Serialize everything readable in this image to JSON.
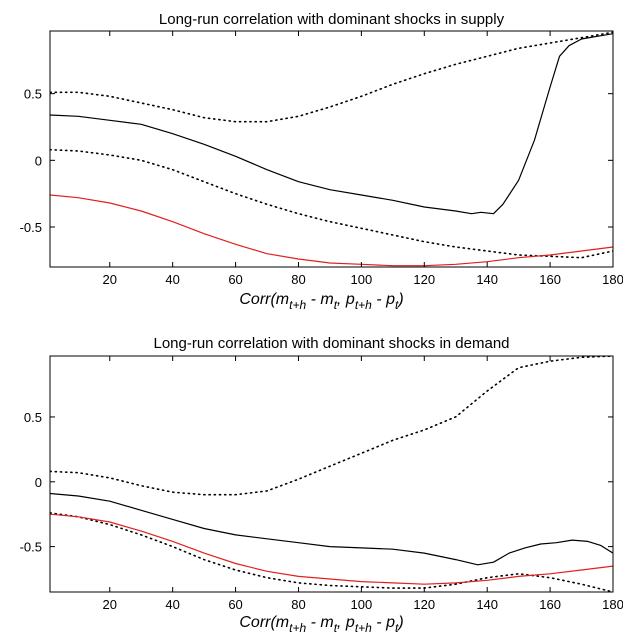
{
  "chart_data": [
    {
      "type": "line",
      "title": "Long-run correlation with dominant shocks in supply",
      "xlabel": {
        "base": "Corr(m",
        "sub1": "t+h",
        "mid1": " - m",
        "sub2": "t",
        "mid2": ", p",
        "sub3": "t+h",
        "mid3": " - p",
        "sub4": "t",
        "end": ")"
      },
      "ylabel": "",
      "xlim": [
        1,
        180
      ],
      "ylim": [
        -0.8,
        0.97
      ],
      "xticks": [
        20,
        40,
        60,
        80,
        100,
        120,
        140,
        160,
        180
      ],
      "yticks": [
        -0.5,
        0,
        0.5
      ],
      "xtick_labels": [
        "20",
        "40",
        "60",
        "80",
        "100",
        "120",
        "140",
        "160",
        "180"
      ],
      "ytick_labels": [
        "-0.5",
        "0",
        "0.5"
      ],
      "grid": false,
      "series": [
        {
          "style": "solid",
          "color": "#000000",
          "x": [
            1,
            10,
            20,
            30,
            40,
            50,
            60,
            70,
            80,
            90,
            100,
            110,
            120,
            130,
            135,
            138,
            142,
            145,
            150,
            155,
            160,
            163,
            166,
            170,
            175,
            180
          ],
          "y": [
            0.34,
            0.33,
            0.3,
            0.27,
            0.2,
            0.12,
            0.03,
            -0.07,
            -0.16,
            -0.22,
            -0.26,
            -0.3,
            -0.35,
            -0.38,
            -0.4,
            -0.39,
            -0.4,
            -0.33,
            -0.15,
            0.15,
            0.55,
            0.78,
            0.86,
            0.91,
            0.93,
            0.95
          ]
        },
        {
          "style": "dotted",
          "color": "#000000",
          "x": [
            1,
            10,
            20,
            30,
            40,
            50,
            60,
            70,
            80,
            90,
            100,
            110,
            120,
            130,
            140,
            150,
            160,
            170,
            180
          ],
          "y": [
            0.51,
            0.51,
            0.48,
            0.43,
            0.38,
            0.32,
            0.29,
            0.29,
            0.33,
            0.4,
            0.48,
            0.57,
            0.65,
            0.72,
            0.78,
            0.84,
            0.88,
            0.92,
            0.96
          ]
        },
        {
          "style": "dotted",
          "color": "#000000",
          "x": [
            1,
            10,
            20,
            30,
            40,
            50,
            60,
            70,
            80,
            90,
            100,
            110,
            120,
            130,
            140,
            150,
            160,
            170,
            180
          ],
          "y": [
            0.08,
            0.07,
            0.04,
            0.0,
            -0.07,
            -0.16,
            -0.25,
            -0.33,
            -0.4,
            -0.46,
            -0.51,
            -0.56,
            -0.61,
            -0.65,
            -0.68,
            -0.71,
            -0.72,
            -0.73,
            -0.68
          ]
        },
        {
          "style": "solid",
          "color": "#e02020",
          "x": [
            1,
            10,
            20,
            30,
            40,
            50,
            60,
            70,
            80,
            90,
            100,
            110,
            120,
            130,
            140,
            150,
            160,
            170,
            180
          ],
          "y": [
            -0.26,
            -0.28,
            -0.32,
            -0.38,
            -0.46,
            -0.55,
            -0.63,
            -0.7,
            -0.74,
            -0.77,
            -0.78,
            -0.79,
            -0.79,
            -0.78,
            -0.76,
            -0.73,
            -0.71,
            -0.68,
            -0.65
          ]
        }
      ]
    },
    {
      "type": "line",
      "title": "Long-run correlation with dominant shocks in demand",
      "xlabel": {
        "base": "Corr(m",
        "sub1": "t+h",
        "mid1": " - m",
        "sub2": "t",
        "mid2": ", p",
        "sub3": "t+h",
        "mid3": " - p",
        "sub4": "t",
        "end": ")"
      },
      "ylabel": "",
      "xlim": [
        1,
        180
      ],
      "ylim": [
        -0.85,
        0.97
      ],
      "xticks": [
        20,
        40,
        60,
        80,
        100,
        120,
        140,
        160,
        180
      ],
      "yticks": [
        -0.5,
        0,
        0.5
      ],
      "xtick_labels": [
        "20",
        "40",
        "60",
        "80",
        "100",
        "120",
        "140",
        "160",
        "180"
      ],
      "ytick_labels": [
        "-0.5",
        "0",
        "0.5"
      ],
      "grid": false,
      "series": [
        {
          "style": "solid",
          "color": "#000000",
          "x": [
            1,
            10,
            20,
            30,
            40,
            50,
            60,
            70,
            80,
            90,
            100,
            110,
            120,
            130,
            137,
            142,
            147,
            152,
            157,
            162,
            167,
            172,
            176,
            180
          ],
          "y": [
            -0.09,
            -0.11,
            -0.15,
            -0.22,
            -0.29,
            -0.36,
            -0.41,
            -0.44,
            -0.47,
            -0.5,
            -0.51,
            -0.52,
            -0.55,
            -0.6,
            -0.64,
            -0.62,
            -0.55,
            -0.51,
            -0.48,
            -0.47,
            -0.45,
            -0.46,
            -0.49,
            -0.55
          ]
        },
        {
          "style": "dotted",
          "color": "#000000",
          "x": [
            1,
            10,
            20,
            30,
            40,
            50,
            60,
            70,
            80,
            90,
            100,
            110,
            120,
            130,
            140,
            150,
            160,
            170,
            180
          ],
          "y": [
            0.08,
            0.07,
            0.03,
            -0.03,
            -0.08,
            -0.1,
            -0.1,
            -0.07,
            0.02,
            0.12,
            0.22,
            0.32,
            0.4,
            0.5,
            0.7,
            0.88,
            0.93,
            0.96,
            0.97
          ]
        },
        {
          "style": "dotted",
          "color": "#000000",
          "x": [
            1,
            10,
            20,
            30,
            40,
            50,
            60,
            70,
            80,
            90,
            100,
            110,
            120,
            130,
            140,
            150,
            160,
            170,
            180
          ],
          "y": [
            -0.24,
            -0.27,
            -0.33,
            -0.41,
            -0.5,
            -0.6,
            -0.68,
            -0.74,
            -0.78,
            -0.8,
            -0.81,
            -0.82,
            -0.82,
            -0.79,
            -0.74,
            -0.71,
            -0.74,
            -0.79,
            -0.85
          ]
        },
        {
          "style": "solid",
          "color": "#e02020",
          "x": [
            1,
            10,
            20,
            30,
            40,
            50,
            60,
            70,
            80,
            90,
            100,
            110,
            120,
            130,
            140,
            150,
            160,
            170,
            180
          ],
          "y": [
            -0.25,
            -0.27,
            -0.31,
            -0.38,
            -0.46,
            -0.55,
            -0.63,
            -0.69,
            -0.73,
            -0.75,
            -0.77,
            -0.78,
            -0.79,
            -0.78,
            -0.76,
            -0.73,
            -0.71,
            -0.68,
            -0.65
          ]
        }
      ]
    }
  ]
}
